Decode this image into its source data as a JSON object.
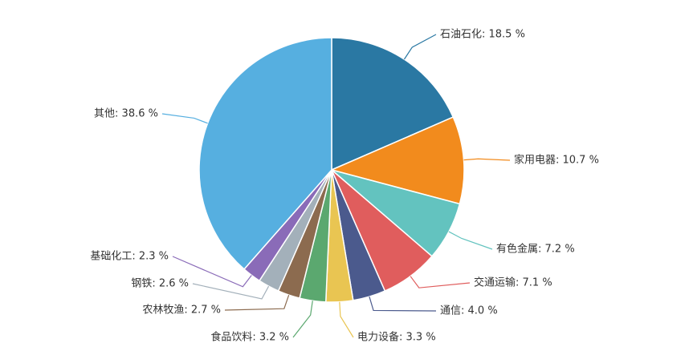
{
  "chart_data": {
    "type": "pie",
    "labels": [
      "石油石化: 18.5 %",
      "家用电器: 10.7 %",
      "有色金属: 7.2 %",
      "交通运输: 7.1 %",
      "通信: 4.0 %",
      "电力设备: 3.3 %",
      "食品饮料: 3.2 %",
      "农林牧渔: 2.7 %",
      "钢铁: 2.6 %",
      "基础化工: 2.3 %",
      "其他: 38.6 %"
    ],
    "values": [
      18.5,
      10.7,
      7.2,
      7.1,
      4.0,
      3.3,
      3.2,
      2.7,
      2.6,
      2.3,
      38.6
    ],
    "colors": [
      "#2a78a3",
      "#f28b1d",
      "#63c3bf",
      "#e05d5d",
      "#4b5a8d",
      "#e9c552",
      "#5ba86f",
      "#8c6b4f",
      "#a3b0ba",
      "#8a6bb8",
      "#56afe0"
    ]
  }
}
